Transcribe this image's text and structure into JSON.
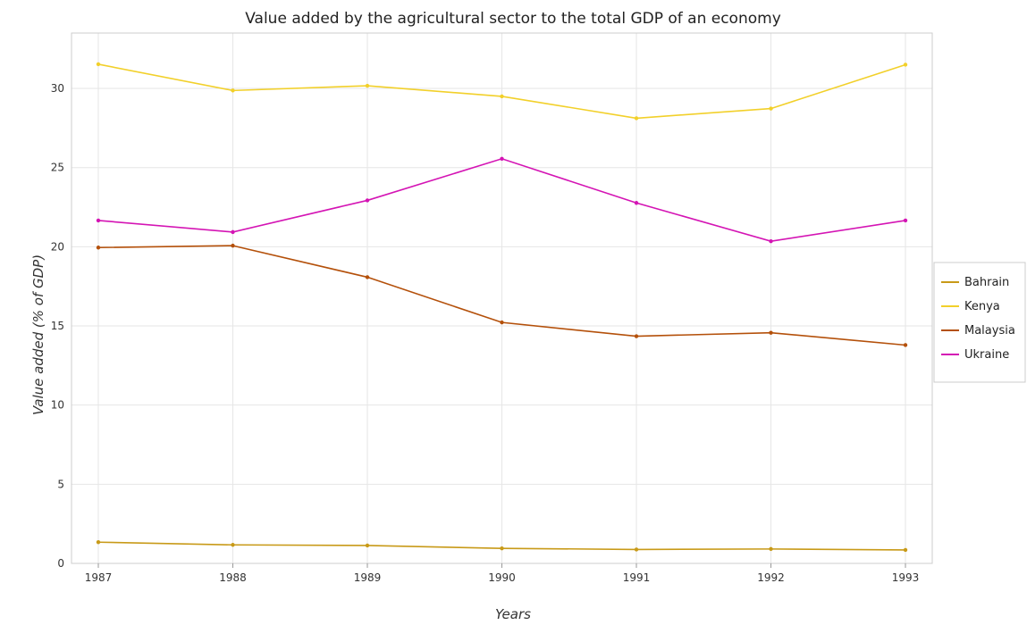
{
  "chart_data": {
    "type": "line",
    "title": "Value added by the agricultural sector to the total GDP of an economy",
    "xlabel": "Years",
    "ylabel": "Value added (% of GDP)",
    "categories": [
      "1987",
      "1988",
      "1989",
      "1990",
      "1991",
      "1992",
      "1993"
    ],
    "ylim": [
      0,
      33.5
    ],
    "yticks": [
      0,
      5,
      10,
      15,
      20,
      25,
      30
    ],
    "grid": true,
    "legend_position": "right",
    "series": [
      {
        "name": "Bahrain",
        "color": "#c89a18",
        "values": [
          1.34,
          1.17,
          1.13,
          0.95,
          0.88,
          0.91,
          0.85
        ]
      },
      {
        "name": "Kenya",
        "color": "#f2d02a",
        "values": [
          31.53,
          29.87,
          30.17,
          29.5,
          28.12,
          28.73,
          31.5
        ]
      },
      {
        "name": "Malaysia",
        "color": "#b4500a",
        "values": [
          19.95,
          20.07,
          18.08,
          15.22,
          14.35,
          14.57,
          13.79
        ]
      },
      {
        "name": "Ukraine",
        "color": "#d414b4",
        "values": [
          21.66,
          20.93,
          22.93,
          25.56,
          22.77,
          20.35,
          21.66
        ]
      }
    ]
  }
}
